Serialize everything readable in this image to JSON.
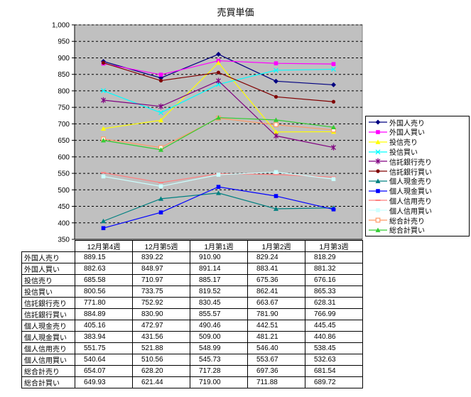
{
  "chart_data": {
    "type": "line",
    "title": "売買単価",
    "categories": [
      "12月第4週",
      "12月第5週",
      "1月第1週",
      "1月第2週",
      "1月第3週"
    ],
    "ylim": [
      350,
      1000
    ],
    "ytick_step": 50,
    "grid": true,
    "legend_position": "right",
    "plot_bg": "#C0C0C0",
    "axis_color": "#000000",
    "series": [
      {
        "name": "外国人売り",
        "color": "#000080",
        "marker": "diamond",
        "values": [
          889.15,
          839.22,
          910.9,
          829.24,
          818.29
        ]
      },
      {
        "name": "外国人買い",
        "color": "#FF00FF",
        "marker": "square",
        "values": [
          882.63,
          848.97,
          891.14,
          883.41,
          881.32
        ]
      },
      {
        "name": "投信売り",
        "color": "#FFFF00",
        "marker": "triangle",
        "values": [
          685.58,
          710.97,
          885.17,
          675.36,
          676.16
        ]
      },
      {
        "name": "投信買い",
        "color": "#00FFFF",
        "marker": "x",
        "values": [
          800.56,
          733.75,
          819.52,
          862.41,
          865.33
        ]
      },
      {
        "name": "信託銀行売り",
        "color": "#800080",
        "marker": "star",
        "values": [
          771.8,
          752.92,
          830.45,
          663.67,
          628.31
        ]
      },
      {
        "name": "信託銀行買い",
        "color": "#800000",
        "marker": "circle",
        "values": [
          884.89,
          830.9,
          855.57,
          781.9,
          766.99
        ]
      },
      {
        "name": "個人現金売り",
        "color": "#008080",
        "marker": "triangle",
        "values": [
          405.16,
          472.97,
          490.46,
          442.51,
          445.45
        ]
      },
      {
        "name": "個人現金買い",
        "color": "#0000FF",
        "marker": "square",
        "values": [
          383.94,
          431.56,
          509.0,
          481.21,
          440.86
        ]
      },
      {
        "name": "個人信用売り",
        "color": "#FF8080",
        "marker": "dash",
        "values": [
          551.75,
          521.88,
          548.99,
          546.4,
          538.45
        ]
      },
      {
        "name": "個人信用買い",
        "color": "#CCFFFF",
        "marker": "square",
        "values": [
          540.64,
          510.56,
          545.73,
          553.67,
          532.63
        ]
      },
      {
        "name": "総合計売り",
        "color": "#FF9966",
        "marker": "square-open",
        "values": [
          654.07,
          628.2,
          717.28,
          697.36,
          681.54
        ]
      },
      {
        "name": "総合計買い",
        "color": "#33CC33",
        "marker": "triangle",
        "values": [
          649.93,
          621.44,
          719.0,
          711.88,
          689.72
        ]
      }
    ]
  }
}
